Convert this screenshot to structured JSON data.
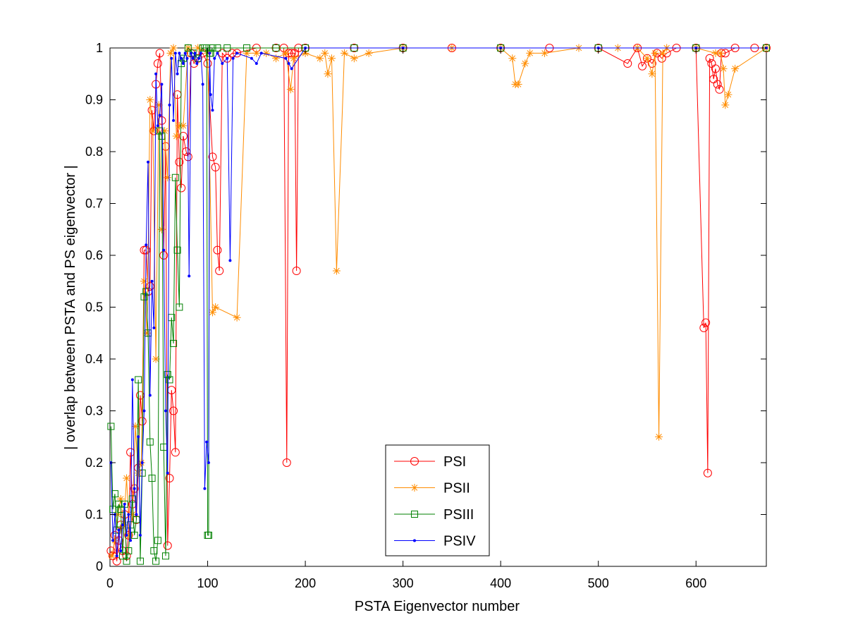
{
  "chart_data": {
    "type": "line",
    "title": "",
    "xlabel": "PSTA Eigenvector number",
    "ylabel": "| overlap between PSTA and PS eigenvector |",
    "xlim": [
      0,
      672
    ],
    "ylim": [
      0,
      1
    ],
    "x_ticks": [
      0,
      100,
      200,
      300,
      400,
      500,
      600
    ],
    "y_ticks": [
      0,
      0.1,
      0.2,
      0.3,
      0.4,
      0.5,
      0.6,
      0.7,
      0.8,
      0.9,
      1
    ],
    "x_tick_labels": [
      "0",
      "100",
      "200",
      "300",
      "400",
      "500",
      "600"
    ],
    "y_tick_labels": [
      "0",
      "0.1",
      "0.2",
      "0.3",
      "0.4",
      "0.5",
      "0.6",
      "0.7",
      "0.8",
      "0.9",
      "1"
    ],
    "grid": false,
    "legend_position": "bottom-center",
    "series": [
      {
        "name": "PSI",
        "color": "#ff0000",
        "marker": "circle",
        "x": [
          1,
          3,
          5,
          7,
          9,
          11,
          13,
          15,
          17,
          19,
          21,
          23,
          25,
          27,
          29,
          31,
          33,
          35,
          37,
          39,
          41,
          43,
          45,
          47,
          49,
          51,
          53,
          55,
          57,
          59,
          61,
          63,
          65,
          67,
          69,
          71,
          73,
          75,
          78,
          80,
          83,
          86,
          90,
          95,
          100,
          105,
          108,
          110,
          112,
          115,
          120,
          125,
          130,
          150,
          170,
          178,
          181,
          183,
          186,
          189,
          191,
          193,
          200,
          250,
          300,
          350,
          400,
          450,
          500,
          530,
          540,
          545,
          550,
          555,
          560,
          565,
          570,
          580,
          600,
          608,
          610,
          612,
          614,
          616,
          618,
          620,
          622,
          624,
          626,
          630,
          640,
          660,
          672
        ],
        "y": [
          0.03,
          0.02,
          0.06,
          0.01,
          0.05,
          0.08,
          0.03,
          0.1,
          0.02,
          0.06,
          0.22,
          0.12,
          0.15,
          0.09,
          0.19,
          0.33,
          0.28,
          0.61,
          0.61,
          0.53,
          0.54,
          0.88,
          0.84,
          0.93,
          0.97,
          0.99,
          0.86,
          0.6,
          0.81,
          0.04,
          0.17,
          0.34,
          0.3,
          0.22,
          0.91,
          0.78,
          0.73,
          0.83,
          0.8,
          0.79,
          0.99,
          0.97,
          0.98,
          0.99,
          0.97,
          0.79,
          0.77,
          0.61,
          0.57,
          0.99,
          0.98,
          0.99,
          0.99,
          1.0,
          1.0,
          1.0,
          0.2,
          0.99,
          0.99,
          0.99,
          0.57,
          1.0,
          1.0,
          1.0,
          1.0,
          1.0,
          1.0,
          1.0,
          1.0,
          0.97,
          1.0,
          0.965,
          0.98,
          0.97,
          0.99,
          0.98,
          0.99,
          1.0,
          1.0,
          0.46,
          0.47,
          0.18,
          0.98,
          0.97,
          0.94,
          0.96,
          0.93,
          0.92,
          0.99,
          0.99,
          1.0,
          1.0,
          1.0
        ]
      },
      {
        "name": "PSII",
        "color": "#ff8c00",
        "marker": "asterisk",
        "x": [
          2,
          5,
          8,
          11,
          14,
          17,
          20,
          23,
          26,
          29,
          32,
          35,
          38,
          41,
          44,
          47,
          50,
          53,
          56,
          59,
          62,
          65,
          68,
          71,
          75,
          80,
          90,
          100,
          105,
          108,
          130,
          140,
          150,
          160,
          170,
          180,
          185,
          188,
          200,
          215,
          220,
          223,
          227,
          232,
          240,
          250,
          265,
          300,
          350,
          400,
          412,
          415,
          418,
          425,
          430,
          445,
          480,
          520,
          540,
          550,
          555,
          558,
          562,
          566,
          570,
          600,
          620,
          625,
          628,
          630,
          633,
          640,
          672
        ],
        "y": [
          0.02,
          0.05,
          0.1,
          0.13,
          0.08,
          0.17,
          0.06,
          0.1,
          0.27,
          0.18,
          0.2,
          0.55,
          0.45,
          0.9,
          0.84,
          0.4,
          0.89,
          0.65,
          0.84,
          0.75,
          0.99,
          1.0,
          0.83,
          0.85,
          0.85,
          1.0,
          1.0,
          0.99,
          0.49,
          0.5,
          0.48,
          0.99,
          0.99,
          0.99,
          0.98,
          0.99,
          0.92,
          0.98,
          0.99,
          0.98,
          0.99,
          0.95,
          0.98,
          0.57,
          0.99,
          0.98,
          0.99,
          1.0,
          1.0,
          1.0,
          0.98,
          0.93,
          0.93,
          0.97,
          0.99,
          0.99,
          1.0,
          1.0,
          1.0,
          0.98,
          0.95,
          0.99,
          0.25,
          0.99,
          1.0,
          1.0,
          0.99,
          0.99,
          0.96,
          0.89,
          0.91,
          0.96,
          1.0
        ]
      },
      {
        "name": "PSIII",
        "color": "#008000",
        "marker": "square",
        "x": [
          1,
          3,
          5,
          7,
          9,
          11,
          13,
          15,
          17,
          19,
          21,
          23,
          25,
          27,
          29,
          31,
          33,
          35,
          37,
          39,
          41,
          43,
          45,
          47,
          49,
          51,
          53,
          55,
          57,
          59,
          61,
          63,
          65,
          67,
          69,
          71,
          73,
          75,
          80,
          85,
          90,
          95,
          97,
          99,
          100,
          101,
          102,
          103,
          105,
          110,
          120,
          140,
          170,
          200,
          250,
          300,
          400,
          500,
          600,
          672
        ],
        "y": [
          0.27,
          0.11,
          0.14,
          0.07,
          0.12,
          0.11,
          0.02,
          0.12,
          0.01,
          0.03,
          0.08,
          0.13,
          0.06,
          0.09,
          0.36,
          0.01,
          0.18,
          0.52,
          0.53,
          0.45,
          0.24,
          0.17,
          0.03,
          0.01,
          0.05,
          0.84,
          0.83,
          0.23,
          0.02,
          0.37,
          0.36,
          0.48,
          0.43,
          0.75,
          0.61,
          0.5,
          0.97,
          0.98,
          1.0,
          0.99,
          0.98,
          1.0,
          1.0,
          1.0,
          0.06,
          0.06,
          0.99,
          0.99,
          1.0,
          1.0,
          1.0,
          1.0,
          1.0,
          1.0,
          1.0,
          1.0,
          1.0,
          1.0,
          1.0,
          1.0
        ]
      },
      {
        "name": "PSIV",
        "color": "#0000ff",
        "marker": "dot",
        "x": [
          1,
          3,
          5,
          7,
          9,
          11,
          13,
          15,
          17,
          19,
          21,
          23,
          25,
          27,
          29,
          31,
          33,
          35,
          37,
          39,
          41,
          43,
          45,
          47,
          49,
          51,
          53,
          55,
          57,
          59,
          61,
          63,
          65,
          67,
          69,
          71,
          73,
          75,
          77,
          79,
          81,
          83,
          85,
          87,
          89,
          91,
          93,
          95,
          97,
          99,
          101,
          102,
          103,
          105,
          107,
          110,
          115,
          120,
          123,
          126,
          130,
          145,
          150,
          155,
          180,
          183,
          186,
          200,
          300,
          400,
          500,
          600,
          672
        ],
        "y": [
          0.2,
          0.05,
          0.1,
          0.02,
          0.07,
          0.03,
          0.08,
          0.12,
          0.06,
          0.1,
          0.05,
          0.36,
          0.15,
          0.1,
          0.25,
          0.06,
          0.2,
          0.3,
          0.62,
          0.78,
          0.33,
          0.55,
          0.46,
          0.95,
          0.85,
          0.87,
          0.93,
          0.61,
          0.3,
          0.18,
          0.89,
          0.98,
          0.86,
          0.99,
          0.95,
          0.99,
          0.98,
          0.97,
          0.99,
          0.98,
          0.56,
          0.99,
          0.98,
          0.99,
          0.97,
          0.98,
          0.99,
          0.93,
          0.15,
          0.24,
          0.2,
          0.99,
          0.91,
          0.88,
          0.98,
          0.99,
          0.97,
          0.98,
          0.59,
          0.98,
          0.99,
          0.98,
          0.97,
          0.99,
          0.98,
          0.97,
          0.96,
          1.0,
          1.0,
          1.0,
          1.0,
          1.0,
          1.0
        ]
      }
    ]
  }
}
